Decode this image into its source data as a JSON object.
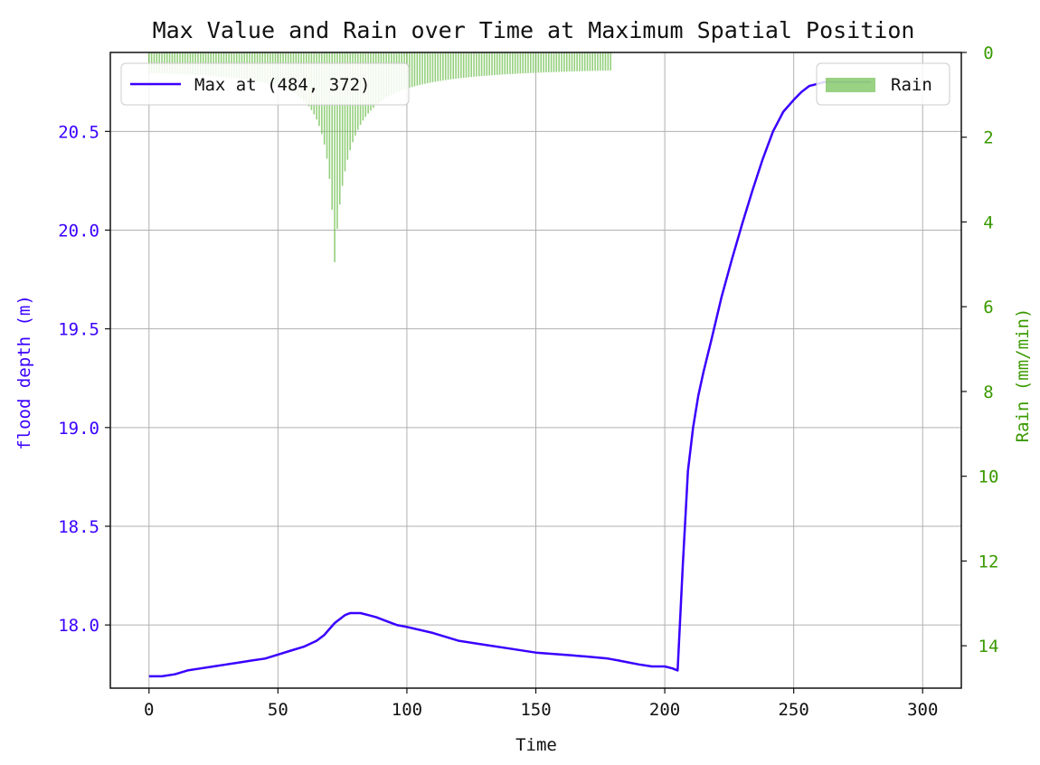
{
  "chart_data": {
    "type": "line",
    "title": "Max Value and Rain over Time at Maximum Spatial Position",
    "xlabel": "Time",
    "ylabel": "flood depth (m)",
    "y2label": "Rain (mm/min)",
    "xlim": [
      -15,
      315
    ],
    "ylim": [
      17.68,
      20.9
    ],
    "y2lim": [
      15,
      0
    ],
    "y2_inverted": true,
    "x_ticks": [
      0,
      50,
      100,
      150,
      200,
      250,
      300
    ],
    "y_ticks": [
      18.0,
      18.5,
      19.0,
      19.5,
      20.0,
      20.5
    ],
    "y_tick_labels": [
      "18.0",
      "18.5",
      "19.0",
      "19.5",
      "20.0",
      "20.5"
    ],
    "y2_ticks": [
      0,
      2,
      4,
      6,
      8,
      10,
      12,
      14
    ],
    "grid": true,
    "colors": {
      "line": "#3a00ff",
      "rain": "#6fbf4f",
      "left_axis": "#3a00ff",
      "right_axis": "#3a9a00"
    },
    "legend_left": {
      "placement": "upper-left",
      "label": "Max at (484, 372)"
    },
    "legend_right": {
      "placement": "upper-right",
      "label": "Rain"
    },
    "series": [
      {
        "name": "Max at (484, 372)",
        "kind": "line",
        "axis": "left",
        "x": [
          0,
          5,
          10,
          15,
          20,
          25,
          30,
          35,
          40,
          45,
          50,
          55,
          60,
          65,
          68,
          70,
          72,
          74,
          76,
          78,
          80,
          82,
          85,
          88,
          92,
          96,
          100,
          110,
          120,
          130,
          140,
          150,
          160,
          170,
          178,
          182,
          186,
          190,
          195,
          200,
          203,
          205,
          207,
          209,
          211,
          213,
          215,
          218,
          222,
          226,
          230,
          234,
          238,
          242,
          246,
          250,
          253,
          256,
          259,
          262,
          265,
          270,
          280
        ],
        "y": [
          17.74,
          17.74,
          17.75,
          17.77,
          17.78,
          17.79,
          17.8,
          17.81,
          17.82,
          17.83,
          17.85,
          17.87,
          17.89,
          17.92,
          17.95,
          17.98,
          18.01,
          18.03,
          18.05,
          18.06,
          18.06,
          18.06,
          18.05,
          18.04,
          18.02,
          18.0,
          17.99,
          17.96,
          17.92,
          17.9,
          17.88,
          17.86,
          17.85,
          17.84,
          17.83,
          17.82,
          17.81,
          17.8,
          17.79,
          17.79,
          17.78,
          17.77,
          18.3,
          18.78,
          19.0,
          19.16,
          19.28,
          19.44,
          19.66,
          19.85,
          20.03,
          20.2,
          20.36,
          20.5,
          20.6,
          20.66,
          20.7,
          20.73,
          20.74,
          20.75,
          20.75,
          20.75,
          20.75
        ]
      },
      {
        "name": "Rain",
        "kind": "bar",
        "axis": "right",
        "x_range": [
          0,
          179
        ],
        "peak_x": 72,
        "peak_value": 4.95,
        "note_values": "per-minute rain intensity; Chicago-type hyetograph with peak near t=72"
      }
    ]
  }
}
